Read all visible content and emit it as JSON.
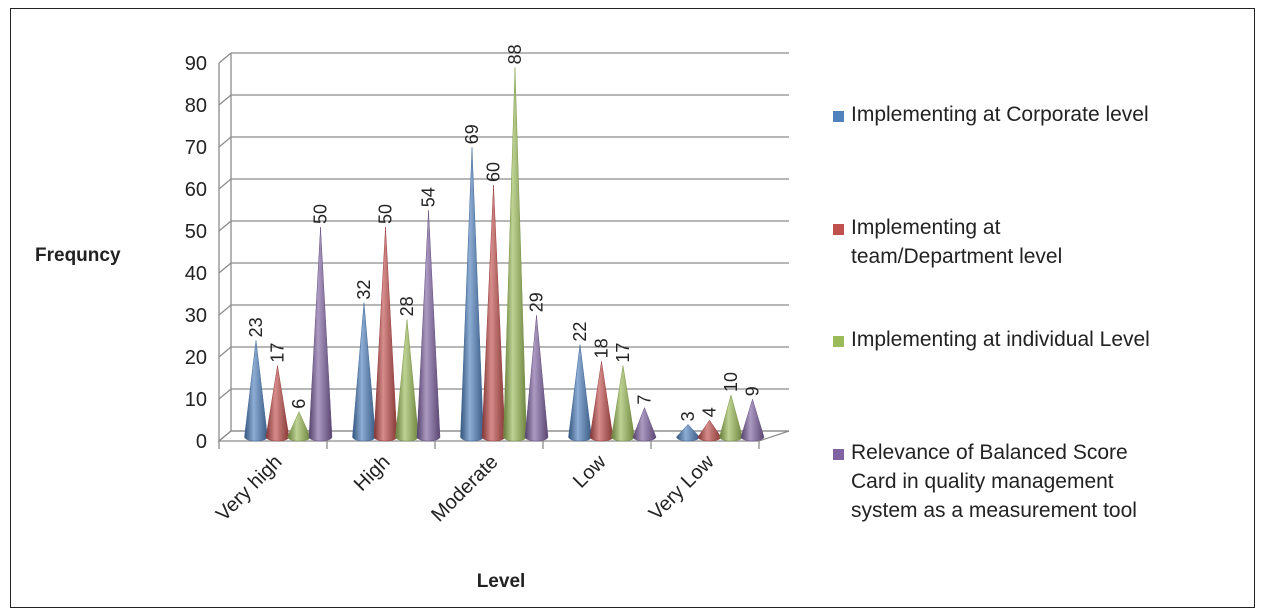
{
  "chart_data": {
    "type": "bar",
    "title": "",
    "xlabel": "Level",
    "ylabel": "Frequncy",
    "ylim": [
      0,
      90
    ],
    "yticks": [
      0,
      10,
      20,
      30,
      40,
      50,
      60,
      70,
      80,
      90
    ],
    "categories": [
      "Very high",
      "High",
      "Moderate",
      "Low",
      "Very Low"
    ],
    "grid": true,
    "legend_position": "right",
    "series": [
      {
        "name": "Implementing at Corporate level",
        "color": "#4f81bd",
        "values": [
          23,
          32,
          69,
          22,
          3
        ]
      },
      {
        "name": "Implementing at team/Department level",
        "color": "#c0504d",
        "values": [
          17,
          50,
          60,
          18,
          4
        ]
      },
      {
        "name": "Implementing at individual Level",
        "color": "#9bbb59",
        "values": [
          6,
          28,
          88,
          17,
          10
        ]
      },
      {
        "name": "Relevance of Balanced Score Card in quality management system as a measurement tool",
        "color": "#8064a2",
        "values": [
          50,
          54,
          29,
          7,
          9
        ]
      }
    ]
  }
}
